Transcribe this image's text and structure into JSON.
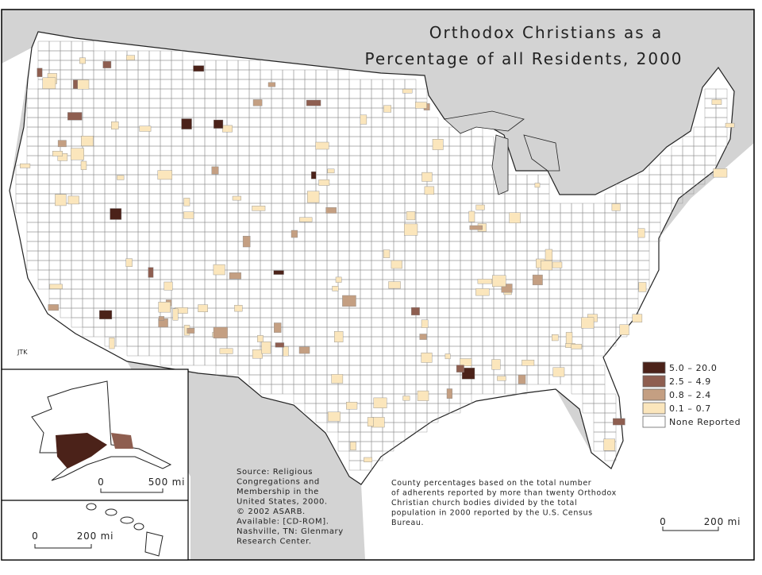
{
  "title": [
    "Orthodox Christians as a",
    "Percentage of all Residents, 2000"
  ],
  "credit": "JTK",
  "legend": [
    {
      "label": "5.0 – 20.0",
      "color": "#4b2219"
    },
    {
      "label": "2.5 – 4.9",
      "color": "#8e5e50"
    },
    {
      "label": "0.8 – 2.4",
      "color": "#c49f82"
    },
    {
      "label": "0.1 – 0.7",
      "color": "#fbe6bc"
    },
    {
      "label": "None Reported",
      "color": "#ffffff"
    }
  ],
  "source": [
    "Source:  Religious",
    "Congregations and",
    "Membership in the",
    "United States, 2000.",
    "© 2002 ASARB.",
    "Available: [CD-ROM].",
    "Nashville, TN: Glenmary",
    "Research Center."
  ],
  "note": [
    "County percentages based on the total number",
    "of adherents reported by more than twenty Orthodox",
    "Christian church bodies divided by the total",
    "population in 2000 reported by the U.S. Census",
    "Bureau."
  ],
  "scale_bars": {
    "alaska": {
      "zero": "0",
      "distance": "500 mi"
    },
    "hawaii": {
      "zero": "0",
      "distance": "200 mi"
    },
    "conus": {
      "zero": "0",
      "distance": "200 mi"
    }
  }
}
